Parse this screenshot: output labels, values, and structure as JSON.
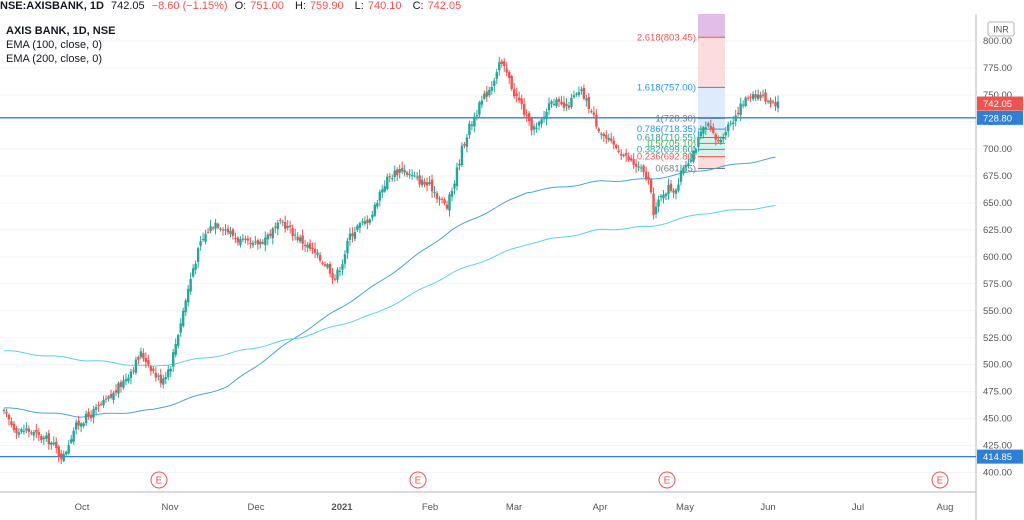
{
  "header": {
    "symbol": "NSE:AXISBANK, 1D",
    "last": "742.05",
    "change": "−8.60 (−1.15%)",
    "o_label": "O:",
    "o_val": "751.00",
    "h_label": "H:",
    "h_val": "759.90",
    "l_label": "L:",
    "l_val": "740.10",
    "c_label": "C:",
    "c_val": "742.05"
  },
  "legend": {
    "title": "AXIS BANK, 1D, NSE",
    "ema100": "EMA (100, close, 0)",
    "ema200": "EMA (200, close, 0)"
  },
  "colors": {
    "up": "#26a69a",
    "down": "#ef5350",
    "ema100": "#4aa3df",
    "ema200": "#5ad2e6",
    "hline": "#2f7fd6",
    "axis_bg": "#ffffff"
  },
  "chart_data": {
    "type": "candlestick",
    "currency": "INR",
    "ylim": [
      383,
      825
    ],
    "y_ticks": [
      400,
      425,
      450,
      475,
      500,
      525,
      550,
      575,
      600,
      625,
      650,
      675,
      700,
      725,
      750,
      775,
      800
    ],
    "x_labels": [
      "Oct",
      "Nov",
      "Dec",
      "2021",
      "Feb",
      "Mar",
      "Apr",
      "May",
      "Jun",
      "Jul",
      "Aug"
    ],
    "price_labels": [
      {
        "value": 742.05,
        "text": "742.05",
        "color": "#ef5350"
      },
      {
        "value": 728.8,
        "text": "728.80",
        "color": "#2f7fd6"
      },
      {
        "value": 414.85,
        "text": "414.85",
        "color": "#2f7fd6"
      }
    ],
    "horizontal_lines": [
      728.8,
      414.85
    ],
    "earnings_markers": [
      "E",
      "E",
      "E",
      "E"
    ],
    "fibonacci": [
      {
        "level": "2.618",
        "value": 803.45,
        "text": "2.618(803.45)"
      },
      {
        "level": "1.618",
        "value": 757.0,
        "text": "1.618(757.00)"
      },
      {
        "level": "1",
        "value": 728.3,
        "text": "1(728.30)"
      },
      {
        "level": "0.786",
        "value": 718.35,
        "text": "0.786(718.35)"
      },
      {
        "level": "0.618",
        "value": 710.55,
        "text": "0.618(710.55)"
      },
      {
        "level": "0.5",
        "value": 705.1,
        "text": "0.5(705.10)"
      },
      {
        "level": "0.382",
        "value": 699.6,
        "text": "0.382(699.60)"
      },
      {
        "level": "0.236",
        "value": 692.8,
        "text": "0.236(692.80)"
      },
      {
        "level": "0",
        "value": 681.85,
        "text": "0(681.85)"
      }
    ],
    "series": [
      {
        "name": "AXIS BANK",
        "kind": "close",
        "points": [
          [
            0,
            455
          ],
          [
            3,
            445
          ],
          [
            6,
            438
          ],
          [
            9,
            440
          ],
          [
            12,
            436
          ],
          [
            15,
            432
          ],
          [
            18,
            430
          ],
          [
            20,
            425
          ],
          [
            22,
            418
          ],
          [
            24,
            415
          ],
          [
            26,
            428
          ],
          [
            28,
            440
          ],
          [
            31,
            448
          ],
          [
            34,
            452
          ],
          [
            37,
            458
          ],
          [
            40,
            464
          ],
          [
            43,
            470
          ],
          [
            45,
            476
          ],
          [
            48,
            485
          ],
          [
            51,
            495
          ],
          [
            53,
            502
          ],
          [
            55,
            510
          ],
          [
            57,
            505
          ],
          [
            59,
            498
          ],
          [
            61,
            490
          ],
          [
            63,
            486
          ],
          [
            65,
            492
          ],
          [
            67,
            500
          ],
          [
            70,
            530
          ],
          [
            73,
            560
          ],
          [
            76,
            590
          ],
          [
            79,
            612
          ],
          [
            82,
            625
          ],
          [
            85,
            632
          ],
          [
            88,
            628
          ],
          [
            91,
            622
          ],
          [
            94,
            616
          ],
          [
            97,
            612
          ],
          [
            100,
            610
          ],
          [
            103,
            614
          ],
          [
            106,
            620
          ],
          [
            109,
            626
          ],
          [
            112,
            632
          ],
          [
            115,
            625
          ],
          [
            118,
            618
          ],
          [
            121,
            612
          ],
          [
            124,
            605
          ],
          [
            127,
            598
          ],
          [
            130,
            592
          ],
          [
            133,
            580
          ],
          [
            136,
            596
          ],
          [
            139,
            620
          ],
          [
            142,
            628
          ],
          [
            145,
            632
          ],
          [
            148,
            640
          ],
          [
            151,
            660
          ],
          [
            154,
            672
          ],
          [
            157,
            678
          ],
          [
            160,
            682
          ],
          [
            163,
            676
          ],
          [
            166,
            672
          ],
          [
            169,
            668
          ],
          [
            172,
            664
          ],
          [
            175,
            654
          ],
          [
            178,
            646
          ],
          [
            181,
            670
          ],
          [
            184,
            700
          ],
          [
            187,
            720
          ],
          [
            190,
            735
          ],
          [
            193,
            748
          ],
          [
            196,
            760
          ],
          [
            199,
            780
          ],
          [
            202,
            770
          ],
          [
            205,
            752
          ],
          [
            208,
            740
          ],
          [
            211,
            722
          ],
          [
            214,
            718
          ],
          [
            217,
            730
          ],
          [
            220,
            748
          ],
          [
            223,
            740
          ],
          [
            226,
            738
          ],
          [
            229,
            748
          ],
          [
            232,
            752
          ],
          [
            235,
            740
          ],
          [
            238,
            724
          ],
          [
            241,
            712
          ],
          [
            244,
            704
          ],
          [
            247,
            700
          ],
          [
            250,
            692
          ],
          [
            253,
            686
          ],
          [
            256,
            680
          ],
          [
            259,
            670
          ],
          [
            261,
            642
          ],
          [
            263,
            650
          ],
          [
            265,
            660
          ],
          [
            267,
            664
          ],
          [
            269,
            662
          ],
          [
            271,
            668
          ],
          [
            273,
            684
          ],
          [
            275,
            690
          ],
          [
            277,
            698
          ],
          [
            279,
            708
          ],
          [
            281,
            718
          ],
          [
            283,
            720
          ],
          [
            285,
            712
          ],
          [
            287,
            706
          ],
          [
            289,
            714
          ],
          [
            291,
            722
          ],
          [
            293,
            728
          ],
          [
            295,
            736
          ],
          [
            297,
            742
          ],
          [
            299,
            748
          ],
          [
            301,
            752
          ],
          [
            303,
            750
          ],
          [
            305,
            748
          ],
          [
            307,
            746
          ],
          [
            309,
            744
          ],
          [
            311,
            742
          ]
        ]
      },
      {
        "name": "EMA (100, close, 0)",
        "kind": "ema100",
        "points": [
          [
            0,
            460
          ],
          [
            30,
            452
          ],
          [
            60,
            458
          ],
          [
            90,
            480
          ],
          [
            120,
            530
          ],
          [
            150,
            575
          ],
          [
            180,
            625
          ],
          [
            210,
            660
          ],
          [
            240,
            670
          ],
          [
            260,
            672
          ],
          [
            280,
            680
          ],
          [
            311,
            692
          ]
        ]
      },
      {
        "name": "EMA (200, close, 0)",
        "kind": "ema200",
        "points": [
          [
            0,
            513
          ],
          [
            30,
            505
          ],
          [
            60,
            498
          ],
          [
            90,
            510
          ],
          [
            120,
            526
          ],
          [
            150,
            548
          ],
          [
            180,
            585
          ],
          [
            210,
            612
          ],
          [
            240,
            625
          ],
          [
            260,
            628
          ],
          [
            280,
            640
          ],
          [
            311,
            647
          ]
        ]
      }
    ]
  }
}
